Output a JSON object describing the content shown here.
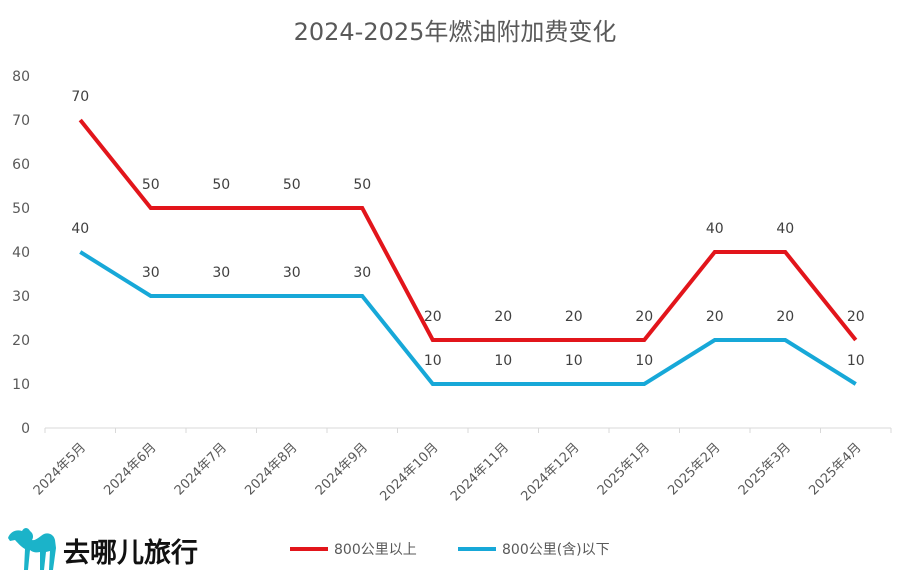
{
  "chart_data": {
    "type": "line",
    "title": "2024-2025年燃油附加费变化",
    "categories": [
      "2024年5月",
      "2024年6月",
      "2024年7月",
      "2024年8月",
      "2024年9月",
      "2024年10月",
      "2024年11月",
      "2024年12月",
      "2025年1月",
      "2025年2月",
      "2025年3月",
      "2025年4月"
    ],
    "series": [
      {
        "name": "800公里以上",
        "color": "#e2151b",
        "values": [
          70,
          50,
          50,
          50,
          50,
          20,
          20,
          20,
          20,
          40,
          40,
          20
        ]
      },
      {
        "name": "800公里(含)以下",
        "color": "#17a8d8",
        "values": [
          40,
          30,
          30,
          30,
          30,
          10,
          10,
          10,
          10,
          20,
          20,
          10
        ]
      }
    ],
    "ylim": [
      0,
      80
    ],
    "yticks": [
      0,
      10,
      20,
      30,
      40,
      50,
      60,
      70,
      80
    ],
    "xlabel": "",
    "ylabel": "",
    "grid": false,
    "legend": "bottom-center"
  },
  "brand": {
    "name": "去哪儿旅行",
    "logo_icon": "camel-icon",
    "logo_color": "#1bb3c9"
  }
}
